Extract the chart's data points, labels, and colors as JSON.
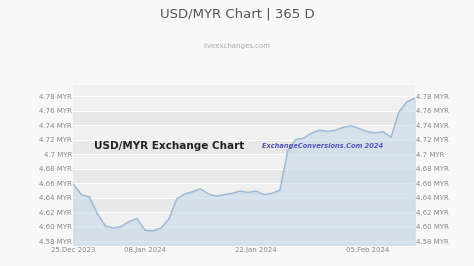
{
  "title": "USD/MYR Chart | 365 D",
  "subtitle": "liveexchanges.com",
  "watermark": "USD/MYR Exchange Chart",
  "watermark2": "ExchangeConversions.Com 2024",
  "ylim": [
    4.575,
    4.795
  ],
  "yticks": [
    4.58,
    4.6,
    4.62,
    4.64,
    4.66,
    4.68,
    4.7,
    4.72,
    4.74,
    4.76,
    4.78
  ],
  "xtick_labels": [
    "25.Dec 2023",
    "08.Jan 2024",
    "22.Jan 2024",
    "05.Feb 2024"
  ],
  "bg_color": "#f8f8f8",
  "plot_bg_odd": "#e8e8e8",
  "plot_bg_even": "#f0f0f0",
  "line_color": "#9bb8d4",
  "fill_color": "#c5d8e8",
  "title_color": "#555555",
  "subtitle_color": "#aaaaaa",
  "watermark_color": "#222222",
  "watermark2_color": "#5555bb",
  "grid_color": "#ffffff",
  "tick_color": "#888888",
  "x_data": [
    0,
    1,
    2,
    3,
    4,
    5,
    6,
    7,
    8,
    9,
    10,
    11,
    12,
    13,
    14,
    15,
    16,
    17,
    18,
    19,
    20,
    21,
    22,
    23,
    24,
    25,
    26,
    27,
    28,
    29,
    30,
    31,
    32,
    33,
    34,
    35,
    36,
    37,
    38,
    39,
    40,
    41,
    42,
    43
  ],
  "y_data": [
    4.658,
    4.644,
    4.641,
    4.618,
    4.601,
    4.598,
    4.6,
    4.607,
    4.611,
    4.595,
    4.594,
    4.598,
    4.61,
    4.638,
    4.645,
    4.648,
    4.652,
    4.645,
    4.642,
    4.644,
    4.646,
    4.649,
    4.647,
    4.649,
    4.644,
    4.646,
    4.65,
    4.705,
    4.72,
    4.722,
    4.729,
    4.733,
    4.731,
    4.733,
    4.737,
    4.739,
    4.735,
    4.731,
    4.729,
    4.731,
    4.723,
    4.758,
    4.772,
    4.777
  ],
  "xtick_positions": [
    0,
    9,
    23,
    37
  ]
}
